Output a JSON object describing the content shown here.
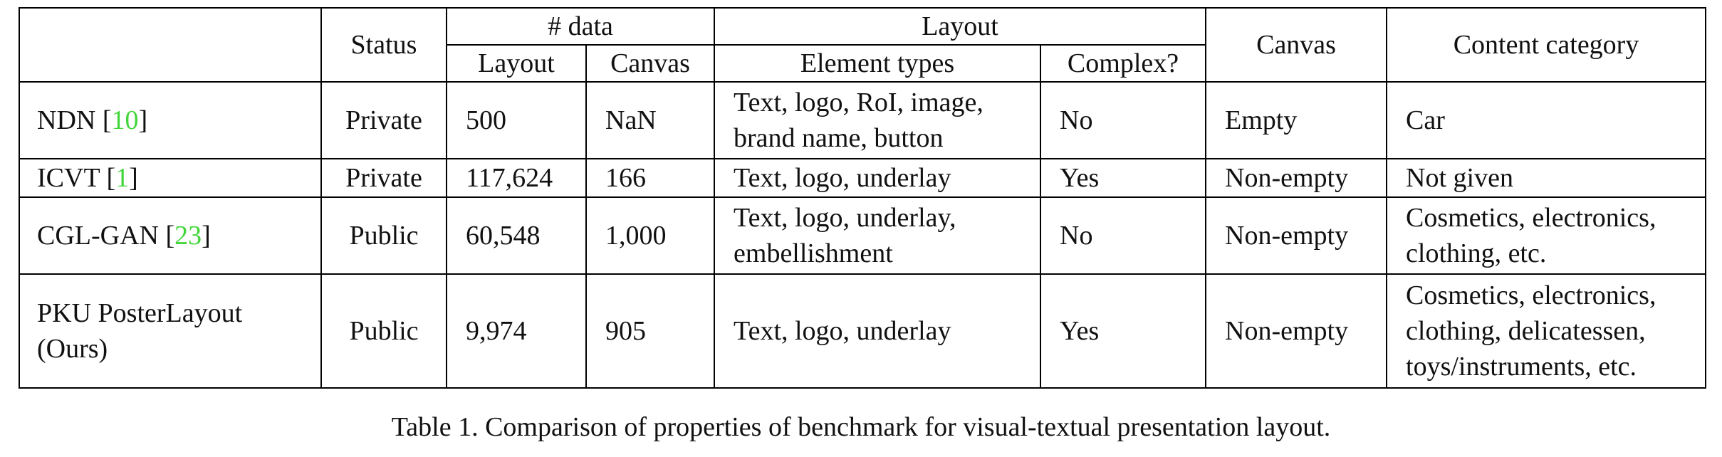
{
  "table": {
    "headers": {
      "status": "Status",
      "data_group": "# data",
      "data_layout": "Layout",
      "data_canvas": "Canvas",
      "layout_group": "Layout",
      "element_types": "Element types",
      "complex": "Complex?",
      "canvas": "Canvas",
      "content_category": "Content category"
    },
    "rows": [
      {
        "method": "NDN [",
        "cite": "10",
        "cite_close": "]",
        "status": "Private",
        "layout_count": "500",
        "canvas_count": "NaN",
        "element_types": [
          "Text, logo, RoI, image,",
          "brand name, button"
        ],
        "complex": "No",
        "canvas": "Empty",
        "content_category": [
          "Car"
        ]
      },
      {
        "method": "ICVT [",
        "cite": "1",
        "cite_close": "]",
        "status": "Private",
        "layout_count": "117,624",
        "canvas_count": "166",
        "element_types": [
          "Text, logo, underlay"
        ],
        "complex": "Yes",
        "canvas": "Non-empty",
        "content_category": [
          "Not given"
        ]
      },
      {
        "method": "CGL-GAN [",
        "cite": "23",
        "cite_close": "]",
        "status": "Public",
        "layout_count": "60,548",
        "canvas_count": "1,000",
        "element_types": [
          "Text, logo, underlay,",
          "embellishment"
        ],
        "complex": "No",
        "canvas": "Non-empty",
        "content_category": [
          "Cosmetics, electronics,",
          "clothing, etc."
        ]
      },
      {
        "method_lines": [
          "PKU PosterLayout",
          "(Ours)"
        ],
        "status": "Public",
        "layout_count": "9,974",
        "canvas_count": "905",
        "element_types": [
          "Text, logo, underlay"
        ],
        "complex": "Yes",
        "canvas": "Non-empty",
        "content_category": [
          "Cosmetics, electronics,",
          "clothing, delicatessen,",
          "toys/instruments, etc."
        ]
      }
    ]
  },
  "caption": "Table 1. Comparison of properties of benchmark for visual-textual presentation layout.",
  "colors": {
    "citation": "#42d63a",
    "rule": "#000000"
  }
}
